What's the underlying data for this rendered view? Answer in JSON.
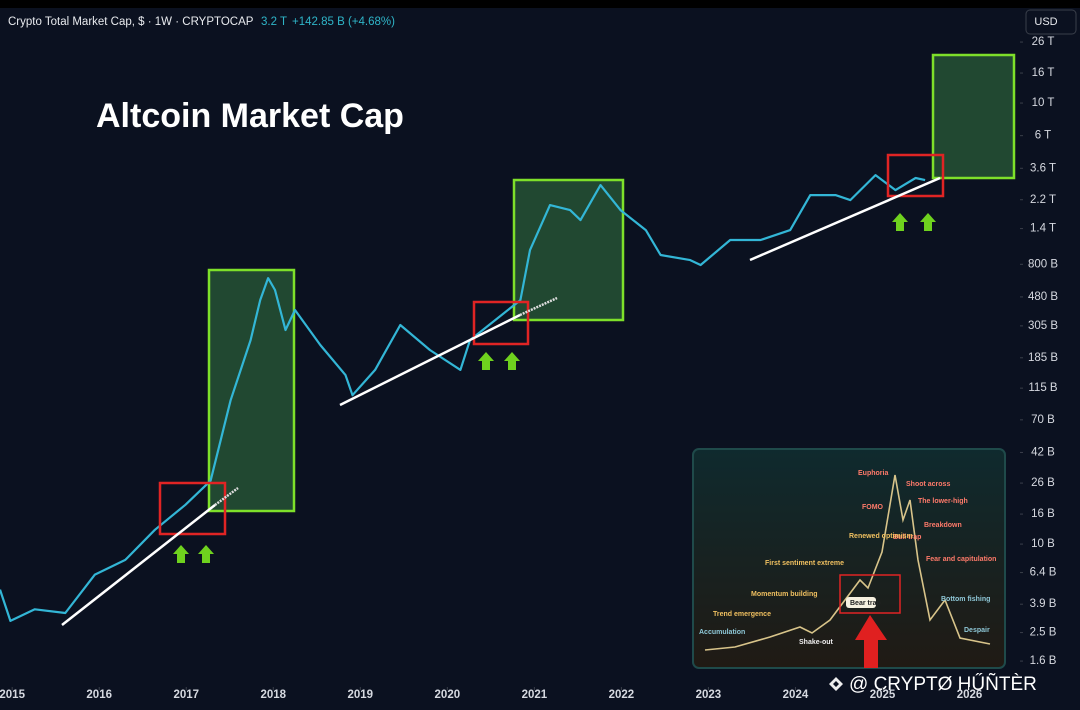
{
  "header": {
    "symbol": "Crypto Total Market Cap, $ · 1W · CRYPTOCAP",
    "price": "3.2 T",
    "change": "+142.85 B (+4.68%)",
    "currency": "USD"
  },
  "watermark": "@ CRYPTØ HŰÑTÈR",
  "inset": {
    "labels": [
      "Euphoria",
      "Shoot across",
      "The lower-high",
      "FOMO",
      "Breakdown",
      "Bull trap",
      "Renewed optimism",
      "First sentiment extreme",
      "Fear and capitulation",
      "Momentum building",
      "Bear trap",
      "Bottom fishing",
      "Trend emergence",
      "Despair",
      "Accumulation",
      "Shake-out"
    ]
  },
  "chart_data": {
    "type": "line",
    "title": "Altcoin Market Cap",
    "log_y": true,
    "grid": false,
    "x": [
      2014.86,
      2014.98,
      2015.26,
      2015.61,
      2015.95,
      2016.3,
      2016.64,
      2016.99,
      2017.28,
      2017.51,
      2017.74,
      2017.85,
      2017.94,
      2018.02,
      2018.14,
      2018.25,
      2018.54,
      2018.83,
      2018.91,
      2019.17,
      2019.46,
      2019.8,
      2020.15,
      2020.26,
      2020.55,
      2020.84,
      2020.95,
      2021.18,
      2021.41,
      2021.53,
      2021.76,
      2021.99,
      2022.28,
      2022.45,
      2022.79,
      2022.91,
      2023.25,
      2023.6,
      2023.94,
      2024.17,
      2024.46,
      2024.63,
      2024.92,
      2025.15,
      2025.38,
      2025.49
    ],
    "series": [
      {
        "name": "Altcoin Market Cap",
        "color": "#33b6d6",
        "values": [
          4.9,
          3.0,
          3.6,
          3.4,
          6.2,
          7.8,
          12.5,
          18.5,
          27,
          95,
          244,
          457,
          645,
          535,
          286,
          391,
          226,
          141,
          103,
          153,
          309,
          209,
          153,
          244,
          334,
          457,
          1000,
          2023,
          1871,
          1600,
          2767,
          1871,
          1368,
          925,
          855,
          791,
          1170,
          1170,
          1368,
          2366,
          2366,
          2188,
          3236,
          2559,
          3090,
          2992
        ]
      }
    ],
    "xlim": [
      2014.86,
      2026.58
    ],
    "xticks": [
      2015,
      2016,
      2017,
      2018,
      2019,
      2020,
      2021,
      2022,
      2023,
      2024,
      2025,
      2026
    ],
    "ylim": [
      1.1,
      31400
    ],
    "yticks": [
      {
        "value": 26000,
        "label": "26 T"
      },
      {
        "value": 16000,
        "label": "16 T"
      },
      {
        "value": 10000,
        "label": "10 T"
      },
      {
        "value": 6000,
        "label": "6 T"
      },
      {
        "value": 3600,
        "label": "3.6 T"
      },
      {
        "value": 2200,
        "label": "2.2 T"
      },
      {
        "value": 1400,
        "label": "1.4 T"
      },
      {
        "value": 800,
        "label": "800 B"
      },
      {
        "value": 480,
        "label": "480 B"
      },
      {
        "value": 305,
        "label": "305 B"
      },
      {
        "value": 185,
        "label": "185 B"
      },
      {
        "value": 115,
        "label": "115 B"
      },
      {
        "value": 70,
        "label": "70 B"
      },
      {
        "value": 42,
        "label": "42 B"
      },
      {
        "value": 26,
        "label": "26 B"
      },
      {
        "value": 16,
        "label": "16 B"
      },
      {
        "value": 10,
        "label": "10 B"
      },
      {
        "value": 6.4,
        "label": "6.4 B"
      },
      {
        "value": 3.9,
        "label": "3.9 B"
      },
      {
        "value": 2.5,
        "label": "2.5 B"
      },
      {
        "value": 1.6,
        "label": "1.6 B"
      }
    ]
  }
}
